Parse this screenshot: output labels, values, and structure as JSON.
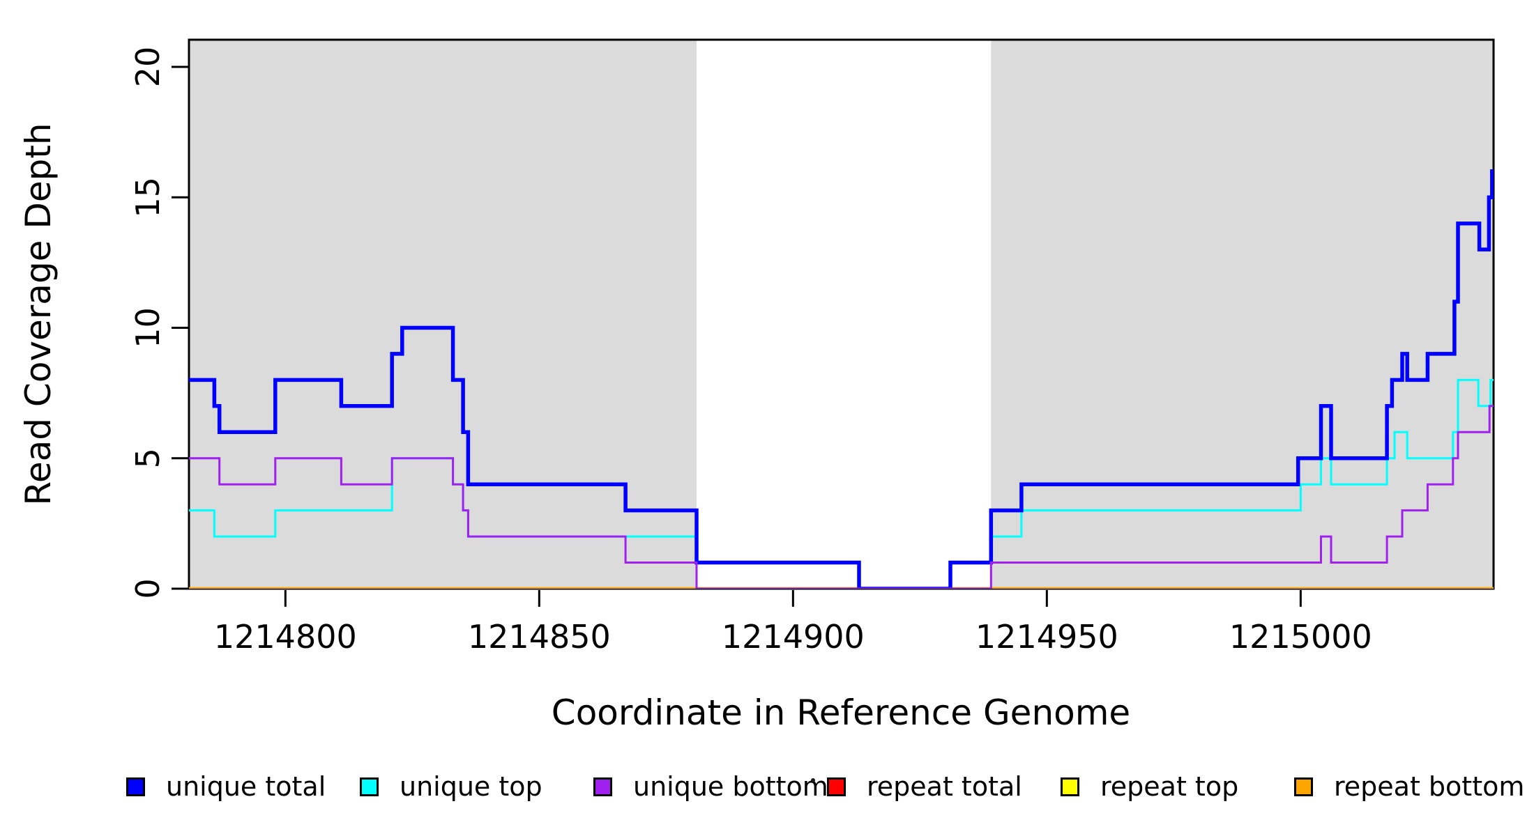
{
  "figure": {
    "background": "#FFFFFF",
    "axis_color": "#000000",
    "plot_bg_unshaded": "#FFFFFF"
  },
  "chart_data": {
    "type": "line",
    "subtype": "step-coverage-plot",
    "title": "",
    "xlabel": "Coordinate in Reference Genome",
    "ylabel": "Read Coverage Depth",
    "xlim": [
      1214781,
      1215038
    ],
    "ylim": [
      0,
      21.04
    ],
    "x_ticks": [
      1214800,
      1214850,
      1214900,
      1214950,
      1215000
    ],
    "x_tick_labels": [
      "1214800",
      "1214850",
      "1214900",
      "1214950",
      "1215000"
    ],
    "y_ticks": [
      0,
      5,
      10,
      15,
      20
    ],
    "y_tick_labels": [
      "0",
      "5",
      "10",
      "15",
      "20"
    ],
    "grid": false,
    "legend_position": "bottom",
    "shaded_regions": [
      {
        "name": "unique-region-left",
        "x0": 1214781,
        "x1": 1214881,
        "color": "#DBDBDB"
      },
      {
        "name": "unique-region-right",
        "x0": 1214939,
        "x1": 1215038,
        "color": "#DBDBDB"
      }
    ],
    "draw_order": [
      "repeat total",
      "repeat top",
      "repeat bottom",
      "unique top",
      "unique total",
      "unique bottom"
    ],
    "series": [
      {
        "name": "unique total",
        "color": "#0000FF",
        "line_width": 5.5,
        "points": [
          [
            1214781,
            8
          ],
          [
            1214786,
            7
          ],
          [
            1214787,
            6
          ],
          [
            1214798,
            8
          ],
          [
            1214811,
            7
          ],
          [
            1214821,
            9
          ],
          [
            1214823,
            10
          ],
          [
            1214833,
            8
          ],
          [
            1214835,
            6
          ],
          [
            1214836,
            4
          ],
          [
            1214867,
            3
          ],
          [
            1214881,
            1
          ],
          [
            1214913,
            0
          ],
          [
            1214931,
            1
          ],
          [
            1214939,
            3
          ],
          [
            1214945,
            4
          ],
          [
            1214999.5,
            5
          ],
          [
            1215004,
            7
          ],
          [
            1215006,
            5
          ],
          [
            1215017,
            7
          ],
          [
            1215018,
            8
          ],
          [
            1215020,
            9
          ],
          [
            1215021,
            8
          ],
          [
            1215025,
            9
          ],
          [
            1215030.3,
            11
          ],
          [
            1215031,
            14
          ],
          [
            1215035.2,
            13
          ],
          [
            1215037.1,
            15
          ],
          [
            1215037.7,
            16
          ]
        ]
      },
      {
        "name": "unique top",
        "color": "#00FFFF",
        "line_width": 3,
        "points": [
          [
            1214781,
            3
          ],
          [
            1214786,
            2
          ],
          [
            1214798,
            3
          ],
          [
            1214821,
            5
          ],
          [
            1214833,
            4
          ],
          [
            1214835,
            3
          ],
          [
            1214836,
            2
          ],
          [
            1214881,
            1
          ],
          [
            1214913,
            0
          ],
          [
            1214931,
            1
          ],
          [
            1214939,
            2
          ],
          [
            1214945,
            3
          ],
          [
            1215000,
            4
          ],
          [
            1215004,
            5
          ],
          [
            1215006,
            4
          ],
          [
            1215017,
            5
          ],
          [
            1215018.5,
            6
          ],
          [
            1215021,
            5
          ],
          [
            1215030,
            6
          ],
          [
            1215031,
            8
          ],
          [
            1215035,
            7
          ],
          [
            1215037.4,
            8
          ]
        ]
      },
      {
        "name": "unique bottom",
        "color": "#A020F0",
        "line_width": 3,
        "points": [
          [
            1214781,
            5
          ],
          [
            1214787,
            4
          ],
          [
            1214798,
            5
          ],
          [
            1214811,
            4
          ],
          [
            1214821,
            5
          ],
          [
            1214833,
            4
          ],
          [
            1214835,
            3
          ],
          [
            1214836,
            2
          ],
          [
            1214867,
            1
          ],
          [
            1214881,
            0
          ],
          [
            1214939,
            1
          ],
          [
            1215004,
            2
          ],
          [
            1215006,
            1
          ],
          [
            1215017,
            2
          ],
          [
            1215020,
            3
          ],
          [
            1215025,
            4
          ],
          [
            1215030,
            5
          ],
          [
            1215031,
            6
          ],
          [
            1215037.2,
            7
          ]
        ]
      },
      {
        "name": "repeat total",
        "color": "#FF0000",
        "line_width": 3,
        "points": [
          [
            1214781,
            0
          ]
        ]
      },
      {
        "name": "repeat top",
        "color": "#FFFF00",
        "line_width": 3,
        "points": [
          [
            1214781,
            0
          ]
        ]
      },
      {
        "name": "repeat bottom",
        "color": "#FFA500",
        "line_width": 4.5,
        "points": [
          [
            1214781,
            0
          ]
        ]
      }
    ],
    "legend": [
      {
        "label": "unique total",
        "color": "#0000FF"
      },
      {
        "label": "unique top",
        "color": "#00FFFF"
      },
      {
        "label": "unique bottom",
        "color": "#A020F0"
      },
      {
        "label": "repeat total",
        "color": "#FF0000"
      },
      {
        "label": "repeat top",
        "color": "#FFFF00"
      },
      {
        "label": "repeat bottom",
        "color": "#FFA500"
      }
    ]
  }
}
